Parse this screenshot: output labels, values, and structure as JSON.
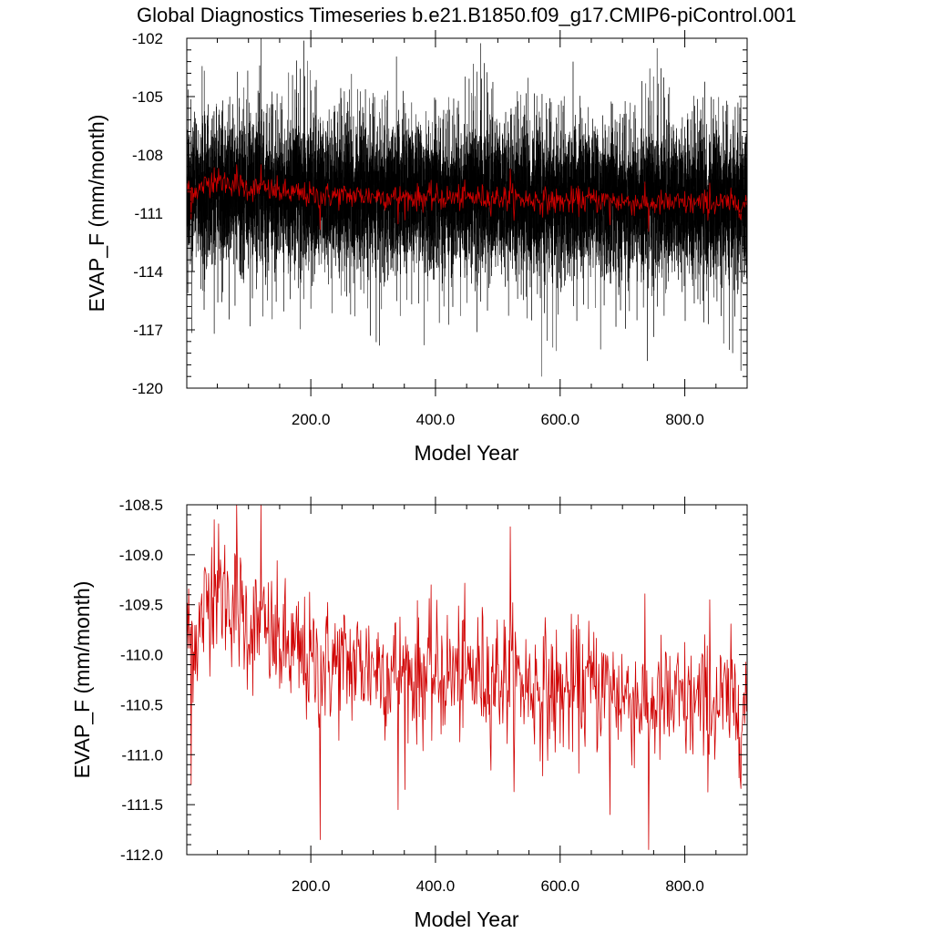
{
  "title": "Global Diagnostics Timeseries b.e21.B1850.f09_g17.CMIP6-piControl.001",
  "colors": {
    "monthly": "#000000",
    "annual": "#d00000",
    "axis": "#000000"
  },
  "chart_data": [
    {
      "type": "line",
      "xlabel": "Model Year",
      "ylabel": "EVAP_F (mm/month)",
      "xlim": [
        1,
        900
      ],
      "ylim": [
        -120,
        -102
      ],
      "x_ticks": [
        200,
        400,
        600,
        800
      ],
      "x_tick_labels": [
        "200.0",
        "400.0",
        "600.0",
        "800.0"
      ],
      "y_ticks": [
        -120,
        -117,
        -114,
        -111,
        -108,
        -105,
        -102
      ],
      "y_tick_labels": [
        "-120",
        "-117",
        "-114",
        "-111",
        "-108",
        "-105",
        "-102"
      ],
      "series": [
        {
          "description": "monthly global mean, black, dense oscillation",
          "color": "#000000",
          "x_start": 1,
          "x_end": 900,
          "n_points": 10800,
          "trend_knots_x": [
            1,
            40,
            100,
            200,
            300,
            400,
            500,
            600,
            700,
            800,
            900
          ],
          "trend_knots_y": [
            -110.0,
            -109.6,
            -109.8,
            -110.1,
            -110.1,
            -110.2,
            -110.2,
            -110.4,
            -110.4,
            -110.5,
            -110.5
          ],
          "amplitude": 3.2,
          "extremes": [
            {
              "x": 120,
              "y": -102.0
            },
            {
              "x": 118,
              "y": -103.4
            },
            {
              "x": 570,
              "y": -119.4
            },
            {
              "x": 890,
              "y": -119.1
            },
            {
              "x": 45,
              "y": -117.2
            },
            {
              "x": 740,
              "y": -118.6
            }
          ]
        },
        {
          "description": "annual mean, red",
          "color": "#d00000",
          "ref": "annual"
        }
      ]
    },
    {
      "type": "line",
      "xlabel": "Model Year",
      "ylabel": "EVAP_F (mm/month)",
      "xlim": [
        1,
        900
      ],
      "ylim": [
        -112.0,
        -108.5
      ],
      "x_ticks": [
        200,
        400,
        600,
        800
      ],
      "x_tick_labels": [
        "200.0",
        "400.0",
        "600.0",
        "800.0"
      ],
      "y_ticks": [
        -112.0,
        -111.5,
        -111.0,
        -110.5,
        -110.0,
        -109.5,
        -109.0,
        -108.5
      ],
      "y_tick_labels": [
        "-112.0",
        "-111.5",
        "-111.0",
        "-110.5",
        "-110.0",
        "-109.5",
        "-109.0",
        "-108.5"
      ],
      "series": [
        {
          "description": "annual global mean",
          "color": "#d00000",
          "x_start": 1,
          "x_end": 900,
          "n_points": 900,
          "trend_knots_x": [
            1,
            20,
            40,
            60,
            80,
            100,
            150,
            200,
            250,
            300,
            350,
            400,
            450,
            500,
            550,
            600,
            650,
            700,
            750,
            800,
            850,
            900
          ],
          "trend_knots_y": [
            -109.8,
            -109.8,
            -109.3,
            -109.4,
            -109.5,
            -109.7,
            -109.9,
            -110.1,
            -110.1,
            -110.1,
            -110.2,
            -110.2,
            -110.2,
            -110.2,
            -110.3,
            -110.4,
            -110.3,
            -110.4,
            -110.5,
            -110.5,
            -110.5,
            -110.5
          ],
          "noise_sd": 0.33,
          "extremes": [
            {
              "x": 81,
              "y": -108.5
            },
            {
              "x": 120,
              "y": -108.5
            },
            {
              "x": 45,
              "y": -108.65
            },
            {
              "x": 8,
              "y": -111.3
            },
            {
              "x": 215,
              "y": -111.85
            },
            {
              "x": 340,
              "y": -111.55
            },
            {
              "x": 520,
              "y": -108.72
            },
            {
              "x": 680,
              "y": -111.6
            },
            {
              "x": 742,
              "y": -111.95
            },
            {
              "x": 840,
              "y": -109.45
            }
          ]
        }
      ]
    }
  ]
}
